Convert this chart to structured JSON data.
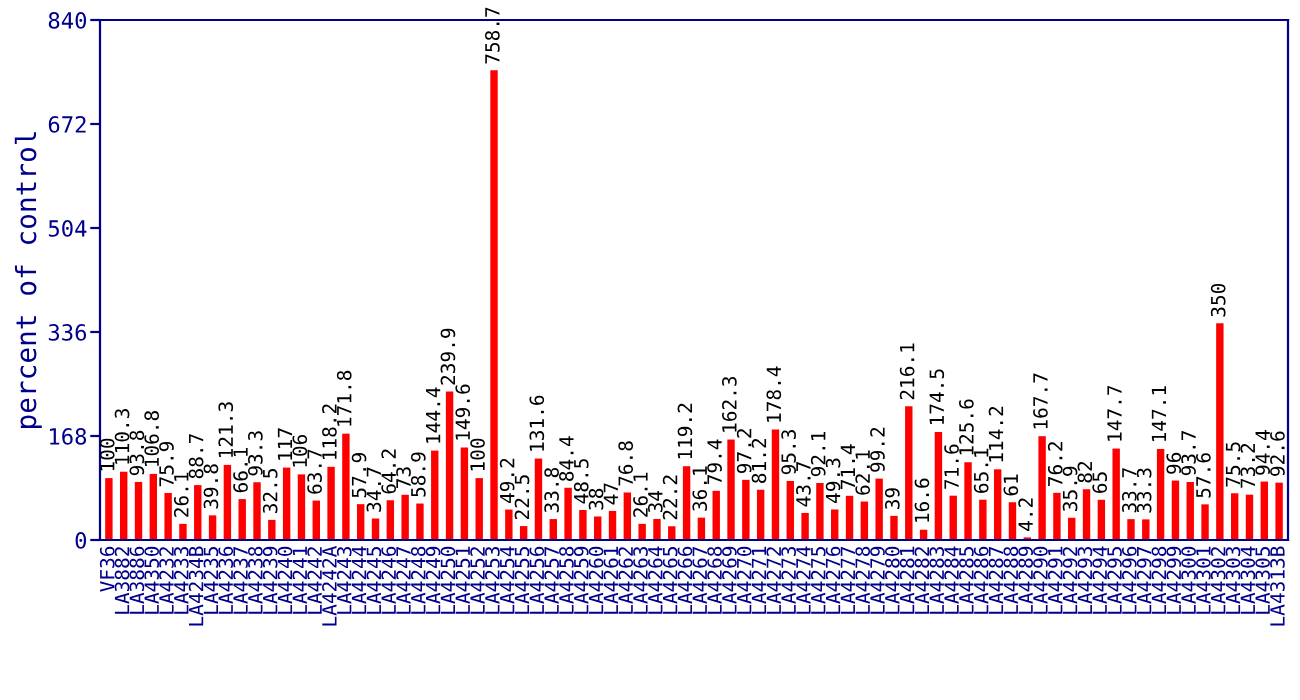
{
  "chart_data": {
    "type": "bar",
    "ylabel": "percent of control",
    "categories": [
      "VF36",
      "LA3882",
      "LA3886",
      "LA4350",
      "LA4232",
      "LA4233",
      "LA4234B",
      "LA4235",
      "LA4236",
      "LA4237",
      "LA4238",
      "LA4239",
      "LA4240",
      "LA4241",
      "LA4242",
      "LA4242A",
      "LA4243",
      "LA4244",
      "LA4245",
      "LA4246",
      "LA4247",
      "LA4248",
      "LA4249",
      "LA4250",
      "LA4251",
      "LA4252",
      "LA4253",
      "LA4254",
      "LA4255",
      "LA4256",
      "LA4257",
      "LA4258",
      "LA4259",
      "LA4260",
      "LA4261",
      "LA4262",
      "LA4263",
      "LA4264",
      "LA4265",
      "LA4266",
      "LA4267",
      "LA4268",
      "LA4269",
      "LA4270",
      "LA4271",
      "LA4272",
      "LA4273",
      "LA4274",
      "LA4275",
      "LA4276",
      "LA4277",
      "LA4278",
      "LA4279",
      "LA4280",
      "LA4281",
      "LA4282",
      "LA4283",
      "LA4284",
      "LA4285",
      "LA4286",
      "LA4287",
      "LA4288",
      "LA4289",
      "LA4290",
      "LA4291",
      "LA4292",
      "LA4293",
      "LA4294",
      "LA4295",
      "LA4296",
      "LA4297",
      "LA4298",
      "LA4299",
      "LA4300",
      "LA4301",
      "LA4302",
      "LA4303",
      "LA4304",
      "LA4305",
      "LA4313B"
    ],
    "values": [
      100,
      110.3,
      93.8,
      106.8,
      75.9,
      26.1,
      88.7,
      39.8,
      121.3,
      66.1,
      93.3,
      32.5,
      117,
      106,
      63.7,
      118.2,
      171.8,
      57.9,
      34.7,
      64.2,
      73,
      58.9,
      144.4,
      239.9,
      149.6,
      100,
      758.7,
      49.2,
      22.5,
      131.6,
      33.8,
      84.4,
      48.5,
      38,
      47,
      76.8,
      26.1,
      34,
      22.2,
      119.2,
      36.1,
      79.4,
      162.3,
      97.2,
      81.2,
      178.4,
      95.3,
      43.7,
      92.1,
      49.3,
      71.4,
      62.1,
      99.2,
      39,
      216.1,
      16.6,
      174.5,
      71.6,
      125.6,
      65.1,
      114.2,
      61,
      4.2,
      167.7,
      76.2,
      35.9,
      82,
      65,
      147.7,
      33.7,
      33.3,
      147.1,
      96,
      93.7,
      57.6,
      350,
      75.5,
      73.2,
      94.4,
      92.6
    ],
    "color": "#ff0000",
    "data_labels": true,
    "ylim": [
      0,
      840
    ],
    "yticks": [
      0,
      168,
      336,
      504,
      672,
      840
    ],
    "grid": false
  }
}
